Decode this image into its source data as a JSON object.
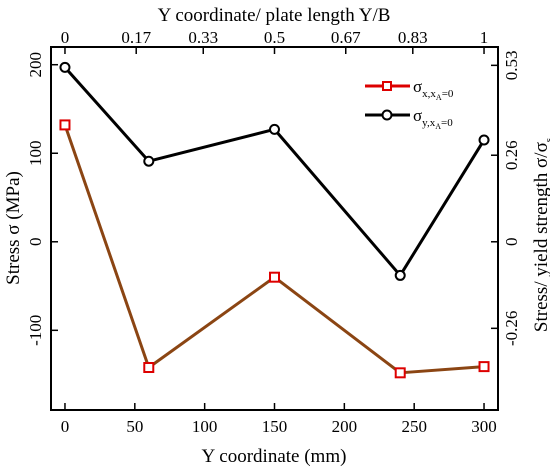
{
  "chart_data": {
    "type": "line",
    "xlabel": "Y coordinate (mm)",
    "ylabel": "Stress σ (MPa)",
    "x2label": "Y coordinate/ plate length Y/B",
    "y2label": "Stress/ yield strength σ/σ",
    "y2label_sub": "s",
    "xlim": [
      -10,
      310
    ],
    "ylim": [
      -190,
      220
    ],
    "x_ticks": [
      0,
      50,
      100,
      150,
      200,
      250,
      300
    ],
    "y_ticks": [
      -100,
      0,
      100,
      200
    ],
    "x_tick_labels": [
      "0",
      "50",
      "100",
      "150",
      "200",
      "250",
      "300"
    ],
    "y_tick_labels": [
      "-100",
      "0",
      "100",
      "200"
    ],
    "x2_ticks": [
      0,
      0.17,
      0.33,
      0.5,
      0.67,
      0.83,
      1
    ],
    "x2_tick_labels": [
      "0",
      "0.17",
      "0.33",
      "0.5",
      "0.67",
      "0.83",
      "1"
    ],
    "y2_ticks": [
      -0.26,
      0,
      0.26,
      0.53
    ],
    "y2_tick_labels": [
      "-0.26",
      "0",
      "0.26",
      "0.53"
    ],
    "legend_position": "top-right",
    "grid": false,
    "series": [
      {
        "name": "σ",
        "name_sub": "x,x",
        "name_subsub": "A",
        "name_tail": "=0",
        "color": "#dd0000",
        "line_color": "#8b4513",
        "marker": "square",
        "x": [
          0,
          60,
          150,
          240,
          300
        ],
        "y": [
          132,
          -142,
          -40,
          -148,
          -141
        ]
      },
      {
        "name": "σ",
        "name_sub": "y,x",
        "name_subsub": "A",
        "name_tail": "=0",
        "color": "#000000",
        "line_color": "#000000",
        "marker": "circle",
        "x": [
          0,
          60,
          150,
          240,
          300
        ],
        "y": [
          197,
          91,
          127,
          -38,
          115
        ]
      }
    ]
  }
}
